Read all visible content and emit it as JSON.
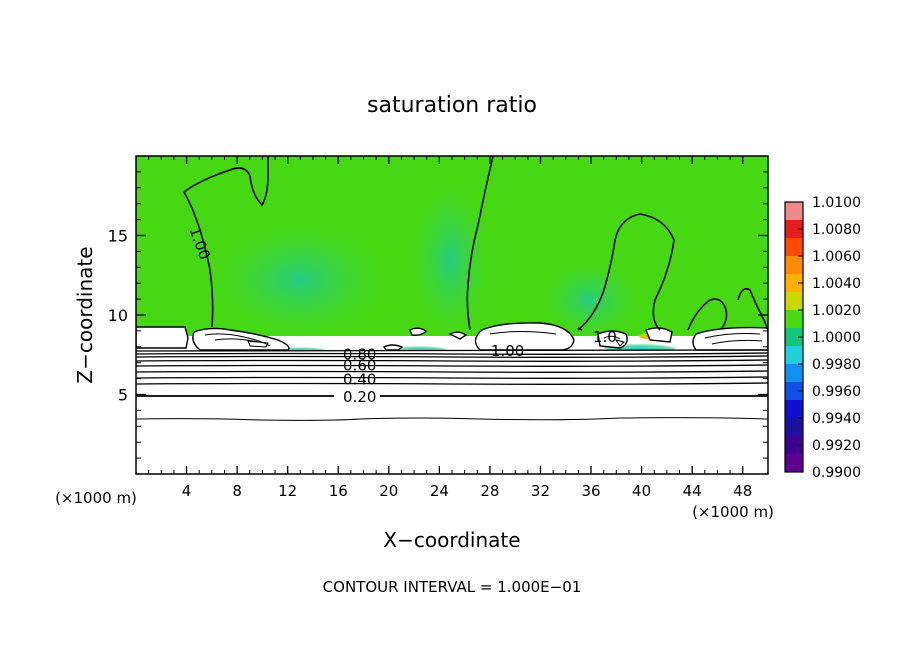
{
  "chart_data": {
    "type": "heatmap",
    "title": "saturation ratio",
    "xlabel": "X−coordinate",
    "ylabel": "Z−coordinate",
    "x_unit_left": "(×1000 m)",
    "x_unit_right": "(×1000 m)",
    "xlim": [
      0,
      50
    ],
    "ylim": [
      0,
      20
    ],
    "x_ticks": [
      "4",
      "8",
      "12",
      "16",
      "20",
      "24",
      "28",
      "32",
      "36",
      "40",
      "44",
      "48"
    ],
    "y_ticks": [
      "5",
      "10",
      "15"
    ],
    "colorbar_labels": [
      "1.0100",
      "1.0080",
      "1.0060",
      "1.0040",
      "1.0020",
      "1.0000",
      "0.9980",
      "0.9960",
      "0.9940",
      "0.9920",
      "0.9900"
    ],
    "colorbar_colors": [
      "#f08a8a",
      "#e81c1c",
      "#ff4a00",
      "#ff8c00",
      "#ffb000",
      "#c8d800",
      "#48dc10",
      "#10c878",
      "#20d0d8",
      "#1090f0",
      "#1050e8",
      "#1010d0",
      "#2010a0",
      "#400090",
      "#600090"
    ],
    "contour_labels": [
      {
        "text": "1.00",
        "x": 5.0,
        "z": 14.5,
        "rotate": 70
      },
      {
        "text": "1.00",
        "x": 29.4,
        "z": 7.7,
        "rotate": 0
      },
      {
        "text": "1.0",
        "x": 37.1,
        "z": 8.6,
        "rotate": 0
      },
      {
        "text": "0.80",
        "x": 17.7,
        "z": 7.5,
        "rotate": 0
      },
      {
        "text": "0.60",
        "x": 17.7,
        "z": 6.8,
        "rotate": 0
      },
      {
        "text": "0.40",
        "x": 17.7,
        "z": 5.9,
        "rotate": 0
      },
      {
        "text": "0.20",
        "x": 17.7,
        "z": 4.8,
        "rotate": 0
      }
    ],
    "contour_interval_text": "CONTOUR INTERVAL = 1.000E−01"
  }
}
